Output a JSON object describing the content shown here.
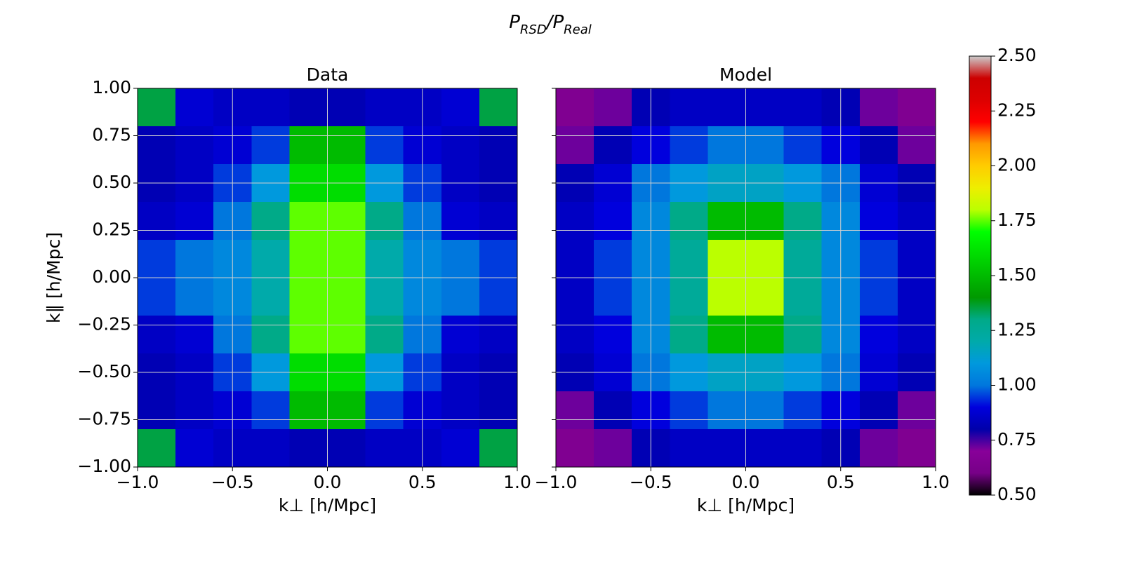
{
  "chart_data": {
    "title": [
      "P",
      "RSD",
      "/P",
      "Real"
    ],
    "colorbar": {
      "zlim": [
        0.5,
        2.5
      ],
      "zticks": [
        {
          "value": 0.5,
          "label": "0.50"
        },
        {
          "value": 0.75,
          "label": "0.75"
        },
        {
          "value": 1,
          "label": "1.00"
        },
        {
          "value": 1.25,
          "label": "1.25"
        },
        {
          "value": 1.5,
          "label": "1.50"
        },
        {
          "value": 1.75,
          "label": "1.75"
        },
        {
          "value": 2,
          "label": "2.00"
        },
        {
          "value": 2.25,
          "label": "2.25"
        },
        {
          "value": 2.5,
          "label": "2.50"
        }
      ],
      "colorscale": [
        [
          0,
          "#000000"
        ],
        [
          0.05,
          "#770088"
        ],
        [
          0.1,
          "#880099"
        ],
        [
          0.15,
          "#0000aa"
        ],
        [
          0.2,
          "#0000dd"
        ],
        [
          0.25,
          "#0077dd"
        ],
        [
          0.3,
          "#0099dd"
        ],
        [
          0.35,
          "#00aaaa"
        ],
        [
          0.4,
          "#00aa88"
        ],
        [
          0.45,
          "#009900"
        ],
        [
          0.5,
          "#00bb00"
        ],
        [
          0.55,
          "#00dd00"
        ],
        [
          0.6,
          "#00ff00"
        ],
        [
          0.65,
          "#bbff00"
        ],
        [
          0.7,
          "#eeee00"
        ],
        [
          0.75,
          "#ffcc00"
        ],
        [
          0.8,
          "#ff9900"
        ],
        [
          0.85,
          "#ff0000"
        ],
        [
          0.9,
          "#dd0000"
        ],
        [
          0.95,
          "#cc0000"
        ],
        [
          1,
          "#cccccc"
        ]
      ]
    },
    "panels": [
      {
        "type": "heatmap",
        "title": "Data",
        "xlabel": "k⊥ [h/Mpc]",
        "ylabel": "k∥ [h/Mpc]",
        "grid": true,
        "show_ytick_labels": true,
        "xlim": [
          -1,
          1
        ],
        "ylim": [
          -1,
          1
        ],
        "xticks": [
          {
            "value": -1,
            "label": "−1.0"
          },
          {
            "value": -0.5,
            "label": "−0.5"
          },
          {
            "value": 0,
            "label": "0.0"
          },
          {
            "value": 0.5,
            "label": "0.5"
          },
          {
            "value": 1,
            "label": "1.0"
          }
        ],
        "yticks": [
          {
            "value": -1,
            "label": "−1.00"
          },
          {
            "value": -0.75,
            "label": "−0.75"
          },
          {
            "value": -0.5,
            "label": "−0.50"
          },
          {
            "value": -0.25,
            "label": "−0.25"
          },
          {
            "value": 0,
            "label": "0.00"
          },
          {
            "value": 0.25,
            "label": "0.25"
          },
          {
            "value": 0.5,
            "label": "0.50"
          },
          {
            "value": 0.75,
            "label": "0.75"
          },
          {
            "value": 1,
            "label": "1.00"
          }
        ],
        "xbins": [
          -1,
          -0.8,
          -0.6,
          -0.4,
          -0.2,
          0,
          0.2,
          0.4,
          0.6,
          0.8,
          1
        ],
        "ybins": [
          1,
          0.8,
          0.6,
          0.4,
          0.2,
          0,
          -0.2,
          -0.4,
          -0.6,
          -0.8,
          -1
        ],
        "values": [
          [
            1.35,
            0.88,
            0.85,
            0.85,
            0.82,
            0.82,
            0.85,
            0.85,
            0.88,
            1.35
          ],
          [
            0.82,
            0.85,
            0.88,
            0.95,
            1.5,
            1.5,
            0.95,
            0.88,
            0.85,
            0.82
          ],
          [
            0.82,
            0.85,
            0.95,
            1.1,
            1.6,
            1.6,
            1.1,
            0.95,
            0.85,
            0.82
          ],
          [
            0.85,
            0.88,
            1.0,
            1.3,
            1.75,
            1.75,
            1.3,
            1.0,
            0.88,
            0.85
          ],
          [
            0.95,
            1.0,
            1.05,
            1.2,
            1.75,
            1.75,
            1.2,
            1.05,
            1.0,
            0.95
          ],
          [
            0.95,
            1.0,
            1.05,
            1.2,
            1.75,
            1.75,
            1.2,
            1.05,
            1.0,
            0.95
          ],
          [
            0.85,
            0.88,
            1.0,
            1.3,
            1.75,
            1.75,
            1.3,
            1.0,
            0.88,
            0.85
          ],
          [
            0.82,
            0.85,
            0.95,
            1.1,
            1.6,
            1.6,
            1.1,
            0.95,
            0.85,
            0.82
          ],
          [
            0.82,
            0.85,
            0.88,
            0.95,
            1.5,
            1.5,
            0.95,
            0.88,
            0.85,
            0.82
          ],
          [
            1.35,
            0.88,
            0.85,
            0.85,
            0.82,
            0.82,
            0.85,
            0.85,
            0.88,
            1.35
          ]
        ]
      },
      {
        "type": "heatmap",
        "title": "Model",
        "xlabel": "k⊥ [h/Mpc]",
        "grid": true,
        "show_ytick_labels": false,
        "xlim": [
          -1,
          1
        ],
        "ylim": [
          -1,
          1
        ],
        "xticks": [
          {
            "value": -1,
            "label": "−1.0"
          },
          {
            "value": -0.5,
            "label": "−0.5"
          },
          {
            "value": 0,
            "label": "0.0"
          },
          {
            "value": 0.5,
            "label": "0.5"
          },
          {
            "value": 1,
            "label": "1.0"
          }
        ],
        "yticks": [
          -1,
          -0.75,
          -0.5,
          -0.25,
          0,
          0.25,
          0.5,
          0.75,
          1
        ],
        "xbins": [
          -1,
          -0.8,
          -0.6,
          -0.4,
          -0.2,
          0,
          0.2,
          0.4,
          0.6,
          0.8,
          1
        ],
        "ybins": [
          1,
          0.8,
          0.6,
          0.4,
          0.2,
          0,
          -0.2,
          -0.4,
          -0.6,
          -0.8,
          -1
        ],
        "values": [
          [
            0.65,
            0.72,
            0.82,
            0.85,
            0.85,
            0.85,
            0.85,
            0.82,
            0.72,
            0.65
          ],
          [
            0.72,
            0.82,
            0.9,
            0.95,
            1.0,
            1.0,
            0.95,
            0.9,
            0.82,
            0.72
          ],
          [
            0.82,
            0.88,
            1.0,
            1.1,
            1.15,
            1.15,
            1.1,
            1.0,
            0.88,
            0.82
          ],
          [
            0.85,
            0.9,
            1.05,
            1.3,
            1.5,
            1.5,
            1.3,
            1.05,
            0.9,
            0.85
          ],
          [
            0.85,
            0.95,
            1.05,
            1.25,
            1.8,
            1.8,
            1.25,
            1.05,
            0.95,
            0.85
          ],
          [
            0.85,
            0.95,
            1.05,
            1.25,
            1.8,
            1.8,
            1.25,
            1.05,
            0.95,
            0.85
          ],
          [
            0.85,
            0.9,
            1.05,
            1.3,
            1.5,
            1.5,
            1.3,
            1.05,
            0.9,
            0.85
          ],
          [
            0.82,
            0.88,
            1.0,
            1.1,
            1.15,
            1.15,
            1.1,
            1.0,
            0.88,
            0.82
          ],
          [
            0.72,
            0.82,
            0.9,
            0.95,
            1.0,
            1.0,
            0.95,
            0.9,
            0.82,
            0.72
          ],
          [
            0.65,
            0.72,
            0.82,
            0.85,
            0.85,
            0.85,
            0.85,
            0.82,
            0.72,
            0.65
          ]
        ]
      }
    ]
  }
}
